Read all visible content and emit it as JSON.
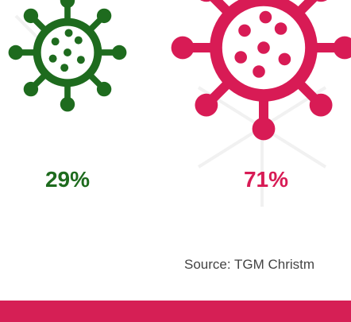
{
  "chart_data": {
    "type": "icon-area",
    "categories": [
      null,
      null
    ],
    "values": [
      29,
      71
    ],
    "value_labels": [
      "29%",
      "71%"
    ],
    "colors": [
      "#1e6b1e",
      "#d81b55"
    ],
    "source": "Source: TGM Christm"
  }
}
